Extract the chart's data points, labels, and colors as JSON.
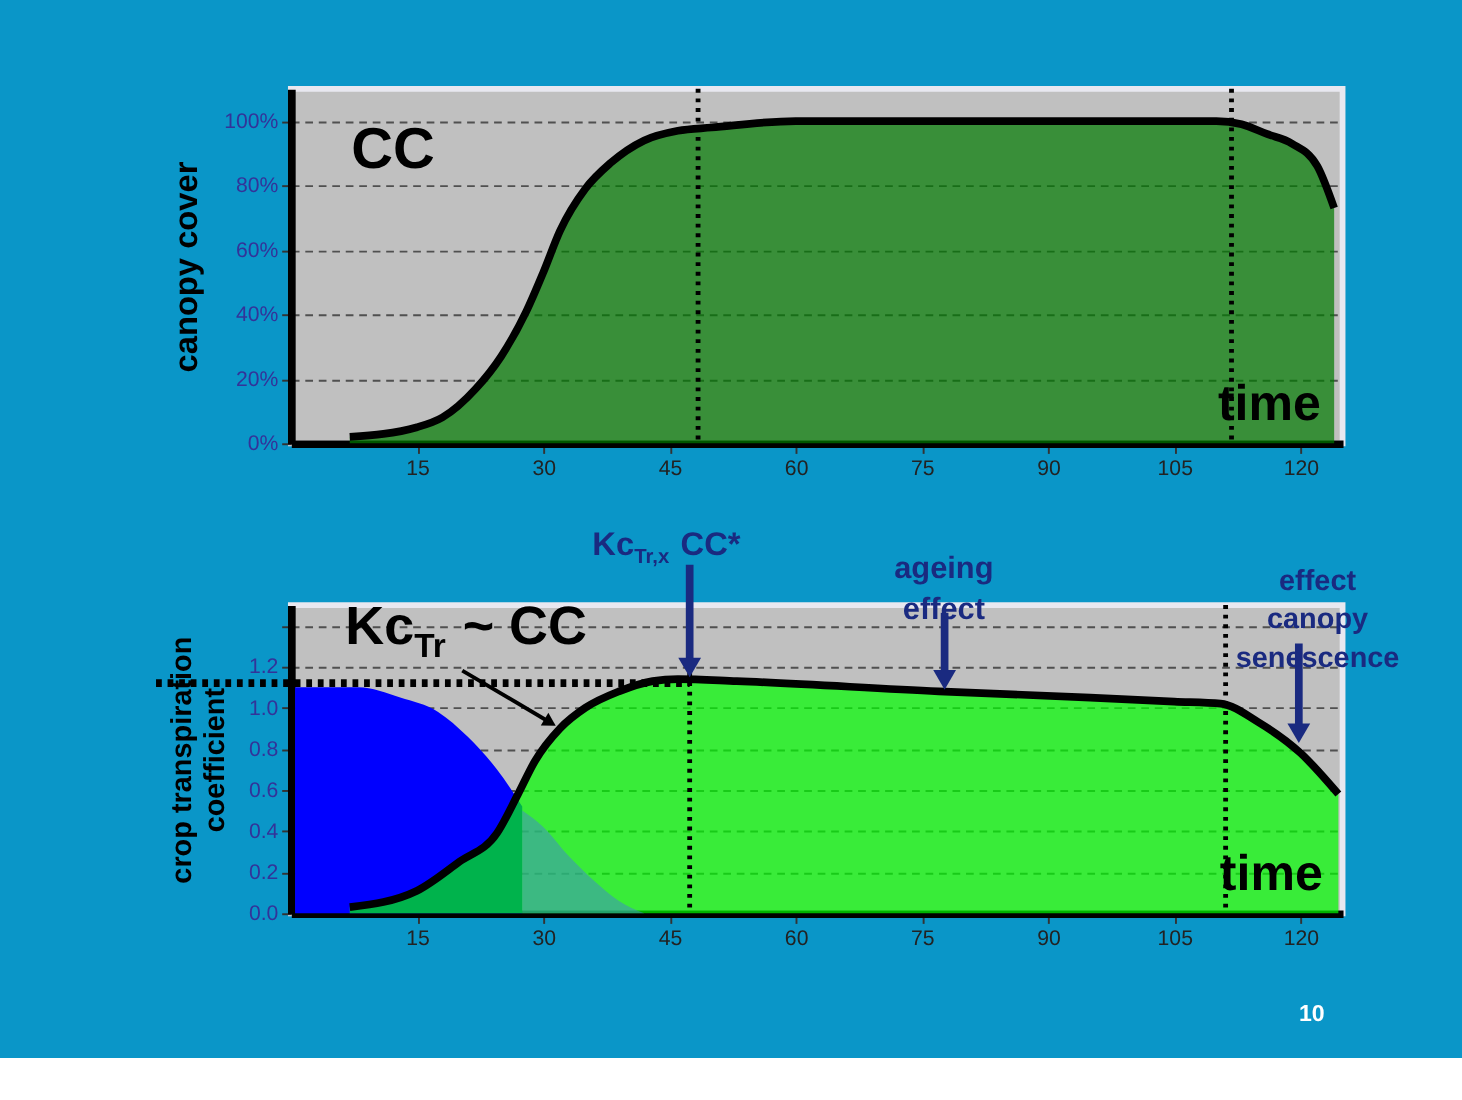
{
  "chart_data": [
    {
      "type": "area",
      "ylabel": "canopy cover",
      "xlim": [
        0,
        125
      ],
      "xticks": [
        15,
        30,
        45,
        60,
        75,
        90,
        105,
        120
      ],
      "ylim": [
        0,
        110
      ],
      "yticks": [
        {
          "value": 0,
          "label": "0%"
        },
        {
          "value": 20,
          "label": "20%"
        },
        {
          "value": 40,
          "label": "40%"
        },
        {
          "value": 60,
          "label": "60%"
        },
        {
          "value": 80,
          "label": "80%"
        },
        {
          "value": 100,
          "label": "100%"
        }
      ],
      "grid": "y",
      "series": [
        {
          "color": "#007a00",
          "x": [
            7,
            15,
            18,
            22,
            25,
            28,
            30,
            32,
            35,
            38,
            42,
            46,
            50,
            60,
            110,
            113,
            116,
            119,
            122,
            124
          ],
          "values": [
            2,
            5,
            8,
            17,
            27,
            41,
            53,
            66,
            79,
            87,
            94,
            97,
            98,
            100,
            100,
            99,
            96,
            93,
            86,
            73
          ]
        }
      ],
      "ref_lines": [
        {
          "axis": "x",
          "value": 48.4,
          "color": "#000000",
          "line_style": "dotted"
        },
        {
          "axis": "x",
          "value": 111.8,
          "color": "#000000",
          "line_style": "dotted"
        }
      ],
      "annotations": [
        "CC",
        "time"
      ]
    },
    {
      "type": "area",
      "ylabel": "crop transpiration\ncoefficient",
      "xlim": [
        0,
        125
      ],
      "xticks": [
        15,
        30,
        45,
        60,
        75,
        90,
        105,
        120
      ],
      "ylim": [
        0,
        1.5
      ],
      "yticks": [
        {
          "value": 0,
          "label": "0.0"
        },
        {
          "value": 0.2,
          "label": "0.2"
        },
        {
          "value": 0.4,
          "label": "0.4"
        },
        {
          "value": 0.6,
          "label": "0.6"
        },
        {
          "value": 0.8,
          "label": "0.8"
        },
        {
          "value": 1.0,
          "label": "1.0"
        },
        {
          "value": 1.2,
          "label": "1.2"
        },
        {
          "value": 1.4,
          "label": null
        }
      ],
      "grid": "y",
      "series": [
        {
          "color": "#0000ff",
          "x": [
            0.5,
            8,
            13,
            17.5,
            21,
            24.5,
            27.5
          ],
          "values": [
            1.1,
            1.1,
            1.05,
            0.98,
            0.86,
            0.7,
            0.52
          ]
        },
        {
          "color": "#00ff00",
          "x": [
            7,
            15,
            20,
            24.5,
            27,
            29,
            32,
            35,
            39,
            43,
            46,
            53,
            77,
            95,
            105,
            110.5,
            115,
            120,
            124.5
          ],
          "values": [
            0.03,
            0.11,
            0.25,
            0.39,
            0.58,
            0.74,
            0.9,
            1.0,
            1.08,
            1.13,
            1.14,
            1.13,
            1.08,
            1.05,
            1.03,
            1.02,
            0.93,
            0.78,
            0.58
          ]
        },
        {
          "color": "#3f8fbf",
          "x": [
            27.5,
            30,
            33,
            36,
            39,
            42
          ],
          "values": [
            0.5,
            0.42,
            0.28,
            0.16,
            0.06,
            0
          ]
        }
      ],
      "ref_lines": [
        {
          "axis": "x",
          "value": 47.4,
          "color": "#000000",
          "line_style": "dotted"
        },
        {
          "axis": "x",
          "value": 111.1,
          "color": "#000000",
          "line_style": "dotted"
        },
        {
          "axis": "y",
          "value": 1.12,
          "color": "#000000",
          "line_style": "dotted"
        }
      ],
      "annotations": [
        {
          "text": "Kc$_{Tr}$ ~ CC",
          "x": 32,
          "y": 0.9
        },
        {
          "text": "Kc$_{Tr,x}$ CC*",
          "x": 47.4,
          "y": 1.14
        },
        {
          "text": "ageing effect",
          "x": 77.7,
          "y": 1.08
        },
        {
          "text": "effect canopy senescence",
          "x": 119.8,
          "y": 0.82
        },
        "time",
        "10"
      ]
    }
  ]
}
